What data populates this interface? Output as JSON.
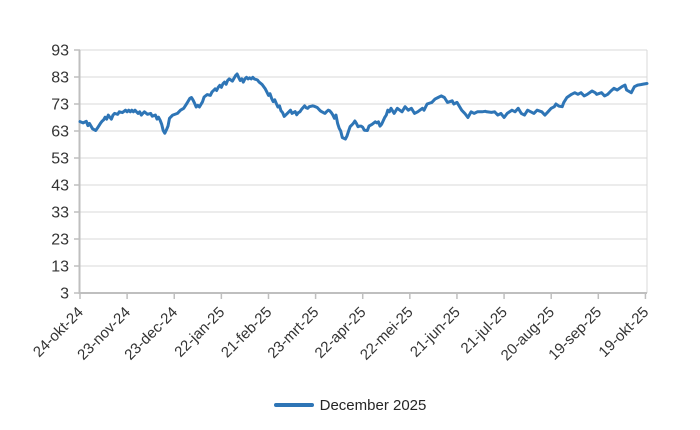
{
  "colors": {
    "line": "#2E75B6",
    "grid": "#D9D9D9",
    "axis": "#BFBFBF",
    "tick_text": "#333333",
    "legend_text": "#262626",
    "background": "#FFFFFF"
  },
  "legend": {
    "position": "bottom-center"
  },
  "chart_data": {
    "type": "line",
    "title": "",
    "xlabel": "",
    "ylabel": "",
    "grid": "horizontal",
    "ylim": [
      3,
      93
    ],
    "y_ticks": [
      3,
      13,
      23,
      33,
      43,
      53,
      63,
      73,
      83,
      93
    ],
    "x_range_days": [
      0,
      361
    ],
    "x_tick_interval_days": 30,
    "x_tick_labels": [
      "24-okt-24",
      "23-nov-24",
      "23-dec-24",
      "22-jan-25",
      "21-feb-25",
      "23-mrt-25",
      "22-apr-25",
      "22-mei-25",
      "21-jun-25",
      "21-jul-25",
      "20-aug-25",
      "19-sep-25",
      "19-okt-25"
    ],
    "legend_position": "bottom-center",
    "series": [
      {
        "name": "December 2025",
        "color": "#2E75B6",
        "points": [
          [
            0,
            66.5
          ],
          [
            2,
            66.0
          ],
          [
            4,
            66.6
          ],
          [
            5,
            65.0
          ],
          [
            6,
            65.8
          ],
          [
            8,
            63.8
          ],
          [
            10,
            63.2
          ],
          [
            11,
            64.0
          ],
          [
            13,
            65.8
          ],
          [
            14,
            66.6
          ],
          [
            15,
            67.1
          ],
          [
            16,
            68.1
          ],
          [
            17,
            67.4
          ],
          [
            18,
            68.9
          ],
          [
            19,
            68.1
          ],
          [
            20,
            67.4
          ],
          [
            21,
            68.9
          ],
          [
            22,
            69.5
          ],
          [
            24,
            69.2
          ],
          [
            25,
            70.1
          ],
          [
            27,
            69.8
          ],
          [
            29,
            70.7
          ],
          [
            30,
            70.1
          ],
          [
            31,
            70.7
          ],
          [
            32,
            70.1
          ],
          [
            33,
            70.7
          ],
          [
            34,
            70.1
          ],
          [
            35,
            70.7
          ],
          [
            36,
            70.1
          ],
          [
            37,
            69.5
          ],
          [
            38,
            70.1
          ],
          [
            39,
            68.9
          ],
          [
            40,
            69.5
          ],
          [
            41,
            70.1
          ],
          [
            43,
            69.2
          ],
          [
            45,
            69.5
          ],
          [
            46,
            68.5
          ],
          [
            48,
            68.9
          ],
          [
            49,
            67.4
          ],
          [
            50,
            68.1
          ],
          [
            51,
            67.0
          ],
          [
            52,
            65.5
          ],
          [
            53,
            63.2
          ],
          [
            54,
            62.2
          ],
          [
            55,
            63.4
          ],
          [
            56,
            64.8
          ],
          [
            57,
            67.7
          ],
          [
            59,
            68.9
          ],
          [
            62,
            69.5
          ],
          [
            64,
            70.7
          ],
          [
            66,
            71.4
          ],
          [
            68,
            73.2
          ],
          [
            70,
            75.1
          ],
          [
            71,
            75.4
          ],
          [
            72,
            74.4
          ],
          [
            73,
            73.2
          ],
          [
            74,
            71.9
          ],
          [
            75,
            72.5
          ],
          [
            76,
            71.9
          ],
          [
            78,
            73.8
          ],
          [
            79,
            75.6
          ],
          [
            81,
            76.5
          ],
          [
            83,
            76.2
          ],
          [
            84,
            77.4
          ],
          [
            85,
            78.0
          ],
          [
            86,
            78.6
          ],
          [
            87,
            78.0
          ],
          [
            88,
            79.2
          ],
          [
            89,
            79.9
          ],
          [
            90,
            79.2
          ],
          [
            91,
            80.5
          ],
          [
            92,
            81.1
          ],
          [
            93,
            80.3
          ],
          [
            94,
            81.7
          ],
          [
            95,
            82.3
          ],
          [
            97,
            81.5
          ],
          [
            99,
            83.5
          ],
          [
            100,
            84.1
          ],
          [
            101,
            82.9
          ],
          [
            102,
            81.7
          ],
          [
            103,
            82.3
          ],
          [
            104,
            81.1
          ],
          [
            105,
            82.3
          ],
          [
            106,
            82.9
          ],
          [
            107,
            82.3
          ],
          [
            108,
            82.7
          ],
          [
            109,
            82.3
          ],
          [
            110,
            82.9
          ],
          [
            111,
            82.3
          ],
          [
            113,
            81.9
          ],
          [
            114,
            81.1
          ],
          [
            116,
            80.2
          ],
          [
            118,
            78.6
          ],
          [
            119,
            77.4
          ],
          [
            120,
            76.2
          ],
          [
            121,
            76.8
          ],
          [
            122,
            75.1
          ],
          [
            123,
            73.9
          ],
          [
            124,
            74.5
          ],
          [
            125,
            73.2
          ],
          [
            126,
            71.9
          ],
          [
            127,
            72.3
          ],
          [
            128,
            70.5
          ],
          [
            129,
            69.8
          ],
          [
            130,
            68.4
          ],
          [
            132,
            69.5
          ],
          [
            134,
            70.7
          ],
          [
            135,
            69.5
          ],
          [
            137,
            70.2
          ],
          [
            138,
            69.0
          ],
          [
            139,
            69.8
          ],
          [
            140,
            70.1
          ],
          [
            141,
            71.0
          ],
          [
            143,
            72.3
          ],
          [
            144,
            71.6
          ],
          [
            145,
            71.4
          ],
          [
            146,
            72.0
          ],
          [
            148,
            72.3
          ],
          [
            149,
            72.2
          ],
          [
            151,
            71.7
          ],
          [
            153,
            70.5
          ],
          [
            154,
            70.1
          ],
          [
            155,
            69.8
          ],
          [
            156,
            69.5
          ],
          [
            157,
            70.2
          ],
          [
            158,
            70.7
          ],
          [
            159,
            70.5
          ],
          [
            160,
            69.8
          ],
          [
            161,
            68.9
          ],
          [
            162,
            67.7
          ],
          [
            163,
            68.9
          ],
          [
            164,
            65.8
          ],
          [
            165,
            64.0
          ],
          [
            166,
            63.0
          ],
          [
            167,
            60.6
          ],
          [
            169,
            60.0
          ],
          [
            170,
            61.2
          ],
          [
            171,
            63.0
          ],
          [
            172,
            64.6
          ],
          [
            173,
            65.2
          ],
          [
            174,
            65.8
          ],
          [
            175,
            66.7
          ],
          [
            176,
            65.8
          ],
          [
            177,
            64.6
          ],
          [
            178,
            64.8
          ],
          [
            179,
            64.8
          ],
          [
            180,
            64.4
          ],
          [
            181,
            63.3
          ],
          [
            183,
            63.2
          ],
          [
            184,
            64.8
          ],
          [
            186,
            65.5
          ],
          [
            188,
            66.4
          ],
          [
            189,
            66.0
          ],
          [
            190,
            66.4
          ],
          [
            191,
            64.8
          ],
          [
            192,
            65.5
          ],
          [
            193,
            66.7
          ],
          [
            194,
            68.0
          ],
          [
            195,
            68.9
          ],
          [
            196,
            70.7
          ],
          [
            197,
            70.1
          ],
          [
            198,
            71.4
          ],
          [
            200,
            69.5
          ],
          [
            202,
            71.4
          ],
          [
            205,
            70.1
          ],
          [
            207,
            72.0
          ],
          [
            209,
            70.7
          ],
          [
            211,
            71.4
          ],
          [
            213,
            69.5
          ],
          [
            215,
            70.1
          ],
          [
            218,
            71.4
          ],
          [
            219,
            70.7
          ],
          [
            221,
            73.0
          ],
          [
            224,
            73.6
          ],
          [
            226,
            74.8
          ],
          [
            228,
            75.4
          ],
          [
            230,
            76.0
          ],
          [
            232,
            75.4
          ],
          [
            234,
            73.6
          ],
          [
            237,
            74.2
          ],
          [
            238,
            73.0
          ],
          [
            240,
            73.6
          ],
          [
            243,
            70.7
          ],
          [
            245,
            69.5
          ],
          [
            247,
            68.0
          ],
          [
            249,
            70.1
          ],
          [
            251,
            69.5
          ],
          [
            253,
            70.1
          ],
          [
            256,
            70.1
          ],
          [
            258,
            70.3
          ],
          [
            259,
            70.1
          ],
          [
            262,
            69.9
          ],
          [
            264,
            70.1
          ],
          [
            266,
            68.9
          ],
          [
            268,
            69.5
          ],
          [
            270,
            68.0
          ],
          [
            272,
            69.5
          ],
          [
            275,
            70.7
          ],
          [
            277,
            70.1
          ],
          [
            279,
            71.4
          ],
          [
            281,
            69.5
          ],
          [
            283,
            68.9
          ],
          [
            285,
            70.7
          ],
          [
            287,
            70.1
          ],
          [
            289,
            69.5
          ],
          [
            291,
            70.7
          ],
          [
            294,
            70.1
          ],
          [
            296,
            68.9
          ],
          [
            298,
            70.1
          ],
          [
            300,
            71.4
          ],
          [
            302,
            72.0
          ],
          [
            303,
            73.0
          ],
          [
            305,
            72.2
          ],
          [
            307,
            72.0
          ],
          [
            308,
            73.6
          ],
          [
            310,
            75.4
          ],
          [
            313,
            76.6
          ],
          [
            315,
            77.2
          ],
          [
            317,
            76.6
          ],
          [
            319,
            77.2
          ],
          [
            321,
            76.0
          ],
          [
            323,
            76.6
          ],
          [
            326,
            77.8
          ],
          [
            328,
            77.2
          ],
          [
            329,
            76.6
          ],
          [
            332,
            77.2
          ],
          [
            334,
            76.0
          ],
          [
            336,
            76.6
          ],
          [
            338,
            77.8
          ],
          [
            340,
            78.8
          ],
          [
            342,
            78.2
          ],
          [
            345,
            79.4
          ],
          [
            347,
            80.0
          ],
          [
            348,
            78.2
          ],
          [
            351,
            77.2
          ],
          [
            353,
            79.4
          ],
          [
            355,
            80.0
          ],
          [
            357,
            80.2
          ],
          [
            359,
            80.4
          ],
          [
            361,
            80.6
          ]
        ]
      }
    ]
  }
}
